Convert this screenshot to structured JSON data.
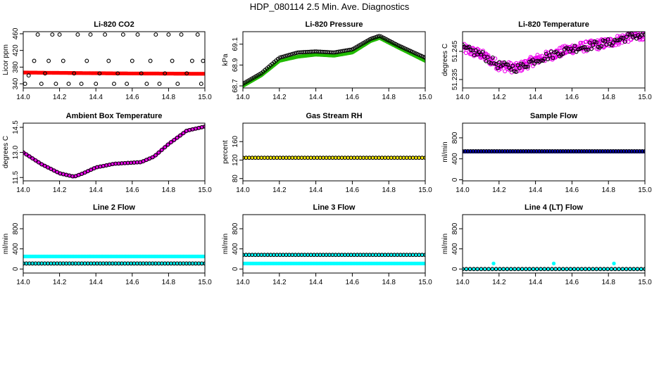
{
  "figure": {
    "title": "HDP_080114  2.5 Min. Ave. Diagnostics"
  },
  "chart_data": [
    {
      "type": "scatter",
      "title": "Li-820 CO2",
      "ylabel": "Licor ppm",
      "xlim": [
        14.0,
        15.0
      ],
      "ylim": [
        330,
        465
      ],
      "xticks": [
        "14.0",
        "14.2",
        "14.4",
        "14.6",
        "14.8",
        "15.0"
      ],
      "yticks": [
        "340",
        "380",
        "420",
        "460"
      ],
      "series": [
        {
          "name": "co2",
          "color": "#ff0000",
          "style": "filled",
          "density": 150,
          "values": [
            {
              "x": 14.0,
              "y": 367
            },
            {
              "x": 14.5,
              "y": 365
            },
            {
              "x": 15.0,
              "y": 364
            }
          ]
        },
        {
          "name": "co2-open",
          "color": "#000000",
          "style": "open",
          "values": [
            {
              "x": 14.01,
              "y": 340
            },
            {
              "x": 14.03,
              "y": 360
            },
            {
              "x": 14.06,
              "y": 395
            },
            {
              "x": 14.08,
              "y": 458
            },
            {
              "x": 14.1,
              "y": 340
            },
            {
              "x": 14.12,
              "y": 365
            },
            {
              "x": 14.14,
              "y": 395
            },
            {
              "x": 14.16,
              "y": 458
            },
            {
              "x": 14.18,
              "y": 340
            },
            {
              "x": 14.2,
              "y": 458
            },
            {
              "x": 14.22,
              "y": 395
            },
            {
              "x": 14.25,
              "y": 340
            },
            {
              "x": 14.28,
              "y": 365
            },
            {
              "x": 14.3,
              "y": 458
            },
            {
              "x": 14.32,
              "y": 340
            },
            {
              "x": 14.35,
              "y": 395
            },
            {
              "x": 14.37,
              "y": 458
            },
            {
              "x": 14.4,
              "y": 340
            },
            {
              "x": 14.42,
              "y": 365
            },
            {
              "x": 14.45,
              "y": 458
            },
            {
              "x": 14.47,
              "y": 395
            },
            {
              "x": 14.5,
              "y": 340
            },
            {
              "x": 14.52,
              "y": 365
            },
            {
              "x": 14.55,
              "y": 458
            },
            {
              "x": 14.57,
              "y": 340
            },
            {
              "x": 14.6,
              "y": 395
            },
            {
              "x": 14.63,
              "y": 458
            },
            {
              "x": 14.65,
              "y": 365
            },
            {
              "x": 14.68,
              "y": 340
            },
            {
              "x": 14.7,
              "y": 395
            },
            {
              "x": 14.73,
              "y": 458
            },
            {
              "x": 14.75,
              "y": 340
            },
            {
              "x": 14.78,
              "y": 365
            },
            {
              "x": 14.8,
              "y": 458
            },
            {
              "x": 14.82,
              "y": 395
            },
            {
              "x": 14.85,
              "y": 340
            },
            {
              "x": 14.87,
              "y": 458
            },
            {
              "x": 14.9,
              "y": 365
            },
            {
              "x": 14.93,
              "y": 395
            },
            {
              "x": 14.96,
              "y": 458
            },
            {
              "x": 14.98,
              "y": 340
            },
            {
              "x": 14.99,
              "y": 395
            }
          ]
        }
      ]
    },
    {
      "type": "scatter",
      "title": "Li-820 Pressure",
      "ylabel": "kPa",
      "xlim": [
        14.0,
        15.0
      ],
      "ylim": [
        68.68,
        69.22
      ],
      "xticks": [
        "14.0",
        "14.2",
        "14.4",
        "14.6",
        "14.8",
        "15.0"
      ],
      "yticks": [
        "68.7",
        "68.9",
        "69.1"
      ],
      "series": [
        {
          "name": "pressure",
          "color": "#22bb00",
          "style": "filled",
          "density": 200,
          "values": [
            {
              "x": 14.0,
              "y": 68.7
            },
            {
              "x": 14.1,
              "y": 68.8
            },
            {
              "x": 14.2,
              "y": 68.94
            },
            {
              "x": 14.3,
              "y": 68.98
            },
            {
              "x": 14.4,
              "y": 69.0
            },
            {
              "x": 14.5,
              "y": 68.99
            },
            {
              "x": 14.6,
              "y": 69.02
            },
            {
              "x": 14.7,
              "y": 69.13
            },
            {
              "x": 14.75,
              "y": 69.16
            },
            {
              "x": 14.85,
              "y": 69.07
            },
            {
              "x": 15.0,
              "y": 68.94
            }
          ]
        },
        {
          "name": "pressure-open",
          "color": "#000000",
          "style": "open",
          "density": 100,
          "values": [
            {
              "x": 14.0,
              "y": 68.72
            },
            {
              "x": 14.1,
              "y": 68.82
            },
            {
              "x": 14.2,
              "y": 68.97
            },
            {
              "x": 14.3,
              "y": 69.02
            },
            {
              "x": 14.4,
              "y": 69.03
            },
            {
              "x": 14.5,
              "y": 69.02
            },
            {
              "x": 14.6,
              "y": 69.05
            },
            {
              "x": 14.7,
              "y": 69.15
            },
            {
              "x": 14.75,
              "y": 69.18
            },
            {
              "x": 14.85,
              "y": 69.09
            },
            {
              "x": 15.0,
              "y": 68.97
            }
          ]
        }
      ]
    },
    {
      "type": "scatter",
      "title": "Li-820 Temperature",
      "ylabel": "degrees C",
      "xlim": [
        14.0,
        15.0
      ],
      "ylim": [
        51.232,
        51.252
      ],
      "xticks": [
        "14.0",
        "14.2",
        "14.4",
        "14.6",
        "14.8",
        "15.0"
      ],
      "yticks": [
        "51.235",
        "51.245"
      ],
      "series": [
        {
          "name": "temp",
          "color": "#ee00ee",
          "style": "open",
          "density": 320,
          "jitter": 0.0018,
          "values": [
            {
              "x": 14.0,
              "y": 51.246
            },
            {
              "x": 14.1,
              "y": 51.244
            },
            {
              "x": 14.2,
              "y": 51.24
            },
            {
              "x": 14.3,
              "y": 51.239
            },
            {
              "x": 14.4,
              "y": 51.242
            },
            {
              "x": 14.5,
              "y": 51.244
            },
            {
              "x": 14.6,
              "y": 51.246
            },
            {
              "x": 14.7,
              "y": 51.247
            },
            {
              "x": 14.8,
              "y": 51.248
            },
            {
              "x": 14.9,
              "y": 51.25
            },
            {
              "x": 15.0,
              "y": 51.251
            }
          ]
        },
        {
          "name": "temp-open",
          "color": "#000000",
          "style": "open",
          "density": 110,
          "jitter": 0.0014,
          "values": [
            {
              "x": 14.0,
              "y": 51.246
            },
            {
              "x": 14.1,
              "y": 51.244
            },
            {
              "x": 14.2,
              "y": 51.24
            },
            {
              "x": 14.3,
              "y": 51.239
            },
            {
              "x": 14.4,
              "y": 51.242
            },
            {
              "x": 14.5,
              "y": 51.244
            },
            {
              "x": 14.6,
              "y": 51.246
            },
            {
              "x": 14.7,
              "y": 51.247
            },
            {
              "x": 14.8,
              "y": 51.248
            },
            {
              "x": 14.9,
              "y": 51.25
            },
            {
              "x": 15.0,
              "y": 51.251
            }
          ]
        }
      ]
    },
    {
      "type": "scatter",
      "title": "Ambient Box Temperature",
      "ylabel": "degrees C",
      "xlim": [
        14.0,
        15.0
      ],
      "ylim": [
        11.3,
        14.75
      ],
      "xticks": [
        "14.0",
        "14.2",
        "14.4",
        "14.6",
        "14.8",
        "15.0"
      ],
      "yticks": [
        "11.5",
        "13.0",
        "14.5"
      ],
      "series": [
        {
          "name": "box",
          "color": "#ee00ee",
          "style": "filled",
          "density": 120,
          "values": [
            {
              "x": 14.0,
              "y": 13.0
            },
            {
              "x": 14.1,
              "y": 12.3
            },
            {
              "x": 14.2,
              "y": 11.75
            },
            {
              "x": 14.28,
              "y": 11.55
            },
            {
              "x": 14.33,
              "y": 11.75
            },
            {
              "x": 14.4,
              "y": 12.1
            },
            {
              "x": 14.5,
              "y": 12.32
            },
            {
              "x": 14.65,
              "y": 12.42
            },
            {
              "x": 14.72,
              "y": 12.75
            },
            {
              "x": 14.8,
              "y": 13.5
            },
            {
              "x": 14.9,
              "y": 14.3
            },
            {
              "x": 15.0,
              "y": 14.55
            }
          ]
        },
        {
          "name": "box-open",
          "color": "#000000",
          "style": "open",
          "density": 60,
          "values": [
            {
              "x": 14.0,
              "y": 13.0
            },
            {
              "x": 14.1,
              "y": 12.3
            },
            {
              "x": 14.2,
              "y": 11.75
            },
            {
              "x": 14.28,
              "y": 11.55
            },
            {
              "x": 14.33,
              "y": 11.75
            },
            {
              "x": 14.4,
              "y": 12.1
            },
            {
              "x": 14.5,
              "y": 12.32
            },
            {
              "x": 14.65,
              "y": 12.42
            },
            {
              "x": 14.72,
              "y": 12.75
            },
            {
              "x": 14.8,
              "y": 13.5
            },
            {
              "x": 14.9,
              "y": 14.3
            },
            {
              "x": 15.0,
              "y": 14.55
            }
          ]
        }
      ]
    },
    {
      "type": "scatter",
      "title": "Gas Stream RH",
      "ylabel": "percent",
      "xlim": [
        14.0,
        15.0
      ],
      "ylim": [
        75,
        200
      ],
      "xticks": [
        "14.0",
        "14.2",
        "14.4",
        "14.6",
        "14.8",
        "15.0"
      ],
      "yticks": [
        "80",
        "120",
        "160"
      ],
      "series": [
        {
          "name": "rh",
          "color": "#ffee00",
          "style": "filled",
          "density": 60,
          "values": [
            {
              "x": 14.0,
              "y": 125
            },
            {
              "x": 15.0,
              "y": 125
            }
          ]
        },
        {
          "name": "rh-open",
          "color": "#000000",
          "style": "open",
          "density": 60,
          "values": [
            {
              "x": 14.0,
              "y": 125
            },
            {
              "x": 15.0,
              "y": 125
            }
          ]
        }
      ]
    },
    {
      "type": "scatter",
      "title": "Sample Flow",
      "ylabel": "ml/min",
      "xlim": [
        14.0,
        15.0
      ],
      "ylim": [
        -20,
        1080
      ],
      "xticks": [
        "14.0",
        "14.2",
        "14.4",
        "14.6",
        "14.8",
        "15.0"
      ],
      "yticks": [
        "0",
        "400",
        "800"
      ],
      "series": [
        {
          "name": "sample",
          "color": "#0000cc",
          "style": "filled",
          "density": 150,
          "values": [
            {
              "x": 14.0,
              "y": 540
            },
            {
              "x": 15.0,
              "y": 540
            }
          ]
        },
        {
          "name": "sample-open",
          "color": "#000000",
          "style": "open",
          "density": 70,
          "values": [
            {
              "x": 14.0,
              "y": 545
            },
            {
              "x": 15.0,
              "y": 545
            }
          ]
        }
      ]
    },
    {
      "type": "scatter",
      "title": "Line 2 Flow",
      "ylabel": "ml/min",
      "xlim": [
        14.0,
        15.0
      ],
      "ylim": [
        -80,
        1080
      ],
      "xticks": [
        "14.0",
        "14.2",
        "14.4",
        "14.6",
        "14.8",
        "15.0"
      ],
      "yticks": [
        "0",
        "400",
        "800"
      ],
      "series": [
        {
          "name": "line2-upper",
          "color": "#00ffff",
          "style": "filled",
          "density": 120,
          "values": [
            {
              "x": 14.0,
              "y": 250
            },
            {
              "x": 15.0,
              "y": 250
            }
          ]
        },
        {
          "name": "line2-lower",
          "color": "#00ffff",
          "style": "filled",
          "density": 60,
          "values": [
            {
              "x": 14.0,
              "y": 110
            },
            {
              "x": 15.0,
              "y": 110
            }
          ]
        },
        {
          "name": "line2-open",
          "color": "#000000",
          "style": "open",
          "density": 60,
          "values": [
            {
              "x": 14.0,
              "y": 110
            },
            {
              "x": 15.0,
              "y": 110
            }
          ]
        }
      ]
    },
    {
      "type": "scatter",
      "title": "Line 3 Flow",
      "ylabel": "ml/min",
      "xlim": [
        14.0,
        15.0
      ],
      "ylim": [
        -80,
        1080
      ],
      "xticks": [
        "14.0",
        "14.2",
        "14.4",
        "14.6",
        "14.8",
        "15.0"
      ],
      "yticks": [
        "0",
        "400",
        "800"
      ],
      "series": [
        {
          "name": "line3-upper",
          "color": "#00ffff",
          "style": "filled",
          "density": 60,
          "values": [
            {
              "x": 14.0,
              "y": 280
            },
            {
              "x": 15.0,
              "y": 280
            }
          ]
        },
        {
          "name": "line3-open",
          "color": "#000000",
          "style": "open",
          "density": 60,
          "values": [
            {
              "x": 14.0,
              "y": 280
            },
            {
              "x": 15.0,
              "y": 280
            }
          ]
        },
        {
          "name": "line3-lower",
          "color": "#00ffff",
          "style": "filled",
          "density": 120,
          "values": [
            {
              "x": 14.0,
              "y": 110
            },
            {
              "x": 15.0,
              "y": 110
            }
          ]
        }
      ]
    },
    {
      "type": "scatter",
      "title": "Line 4 (LT) Flow",
      "ylabel": "ml/min",
      "xlim": [
        14.0,
        15.0
      ],
      "ylim": [
        -80,
        1080
      ],
      "xticks": [
        "14.0",
        "14.2",
        "14.4",
        "14.6",
        "14.8",
        "15.0"
      ],
      "yticks": [
        "0",
        "400",
        "800"
      ],
      "series": [
        {
          "name": "line4",
          "color": "#00ffff",
          "style": "filled",
          "density": 50,
          "values": [
            {
              "x": 14.0,
              "y": 0
            },
            {
              "x": 15.0,
              "y": 0
            }
          ]
        },
        {
          "name": "line4-open",
          "color": "#000000",
          "style": "open",
          "density": 50,
          "values": [
            {
              "x": 14.0,
              "y": 0
            },
            {
              "x": 15.0,
              "y": 0
            }
          ]
        },
        {
          "name": "line4-spikes",
          "color": "#00ffff",
          "style": "filled",
          "values": [
            {
              "x": 14.17,
              "y": 110
            },
            {
              "x": 14.5,
              "y": 110
            },
            {
              "x": 14.83,
              "y": 110
            }
          ]
        }
      ]
    }
  ]
}
